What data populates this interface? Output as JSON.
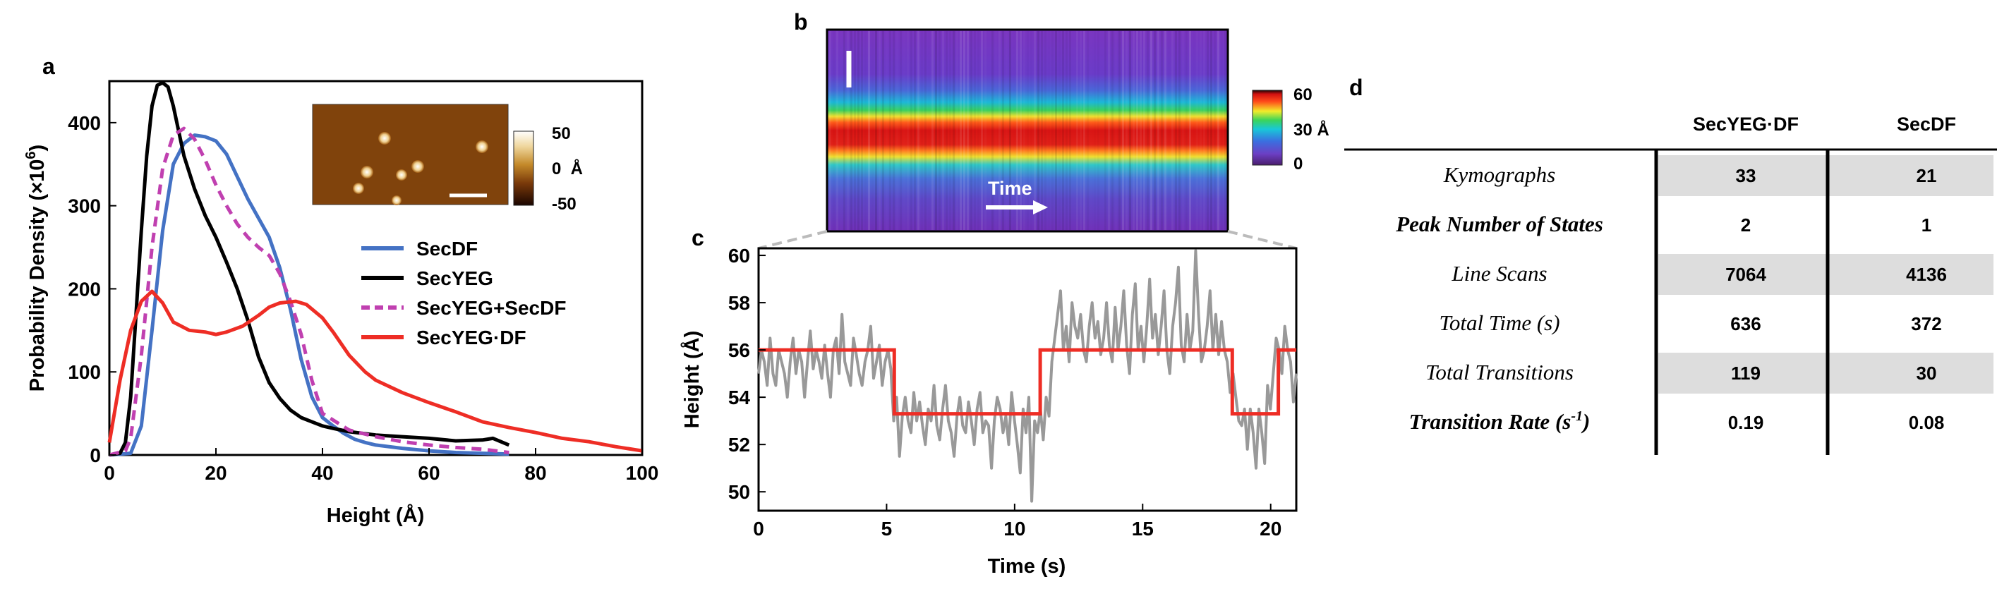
{
  "colors": {
    "secdf": "#4472c4",
    "secyeg": "#000000",
    "mix": "#c040b0",
    "secyegdf": "#ee2d25",
    "trace": "#999999",
    "fit": "#ee2d25",
    "table_shade": "#dddddd"
  },
  "panel_labels": {
    "a": "a",
    "b": "b",
    "c": "c",
    "d": "d"
  },
  "chart_data": [
    {
      "id": "a",
      "type": "line",
      "title": "",
      "xlabel": "Height (Å)",
      "ylabel": "Probability Density (×10⁶)",
      "ylabel_main": "Probability Density (×10",
      "ylabel_exp": "6",
      "ylabel_close": ")",
      "xlim": [
        0,
        100
      ],
      "ylim": [
        0,
        450
      ],
      "xticks": [
        0,
        20,
        40,
        60,
        80,
        100
      ],
      "yticks": [
        0,
        100,
        200,
        300,
        400
      ],
      "legend": {
        "position": "center-right",
        "entries": [
          {
            "label": "SecDF",
            "key": "secdf",
            "style": "solid"
          },
          {
            "label": "SecYEG",
            "key": "secyeg",
            "style": "solid"
          },
          {
            "label": "SecYEG+SecDF",
            "key": "mix",
            "style": "dashed"
          },
          {
            "label": "SecYEG·DF",
            "key": "secyegdf",
            "style": "solid"
          }
        ]
      },
      "inset": {
        "colorbar_ticks": [
          "50",
          "0  Å",
          "-50"
        ]
      },
      "series": [
        {
          "name": "SecDF",
          "key": "secdf",
          "style": "solid",
          "x": [
            0,
            4,
            6,
            8,
            10,
            12,
            14,
            16,
            18,
            20,
            22,
            24,
            26,
            28,
            30,
            32,
            34,
            36,
            38,
            40,
            42,
            44,
            46,
            48,
            50,
            55,
            60,
            65,
            70,
            75
          ],
          "y": [
            0,
            2,
            35,
            150,
            270,
            350,
            375,
            385,
            383,
            378,
            362,
            335,
            308,
            285,
            262,
            225,
            175,
            115,
            70,
            45,
            35,
            26,
            19,
            15,
            12,
            8,
            5,
            3,
            2,
            1
          ]
        },
        {
          "name": "SecYEG",
          "key": "secyeg",
          "style": "solid",
          "x": [
            0,
            2,
            3,
            4,
            5,
            6,
            7,
            8,
            9,
            10,
            11,
            12,
            14,
            16,
            18,
            20,
            22,
            24,
            26,
            28,
            30,
            32,
            34,
            36,
            38,
            40,
            42,
            45,
            50,
            55,
            60,
            65,
            70,
            72,
            75
          ],
          "y": [
            0,
            2,
            15,
            70,
            170,
            270,
            360,
            420,
            445,
            448,
            443,
            420,
            360,
            320,
            288,
            262,
            232,
            200,
            162,
            118,
            87,
            68,
            54,
            45,
            40,
            35,
            32,
            28,
            24,
            22,
            20,
            17,
            18,
            20,
            12
          ]
        },
        {
          "name": "SecYEG+SecDF",
          "key": "mix",
          "style": "dashed",
          "x": [
            0,
            3,
            4,
            6,
            8,
            10,
            12,
            14,
            16,
            18,
            20,
            22,
            24,
            26,
            28,
            30,
            32,
            34,
            36,
            38,
            40,
            45,
            50,
            55,
            60,
            65,
            70,
            75
          ],
          "y": [
            0,
            5,
            20,
            120,
            250,
            345,
            385,
            393,
            380,
            355,
            325,
            300,
            278,
            262,
            250,
            240,
            218,
            185,
            145,
            90,
            50,
            30,
            22,
            16,
            12,
            9,
            7,
            3
          ]
        },
        {
          "name": "SecYEG·DF",
          "key": "secyegdf",
          "style": "solid",
          "x": [
            0,
            2,
            4,
            6,
            8,
            10,
            12,
            15,
            18,
            20,
            22,
            25,
            28,
            30,
            32,
            35,
            37,
            40,
            42,
            45,
            48,
            50,
            55,
            60,
            65,
            70,
            75,
            80,
            85,
            90,
            95,
            100
          ],
          "y": [
            15,
            90,
            150,
            185,
            197,
            183,
            160,
            150,
            148,
            145,
            148,
            155,
            168,
            178,
            183,
            185,
            181,
            165,
            148,
            120,
            100,
            90,
            75,
            63,
            52,
            40,
            33,
            27,
            20,
            16,
            10,
            5
          ]
        }
      ]
    },
    {
      "id": "b",
      "type": "heatmap",
      "title": "",
      "annotation": "Time",
      "colorbar_ticks": [
        "60",
        "30 Å",
        "0"
      ],
      "vlim": [
        0,
        60
      ]
    },
    {
      "id": "c",
      "type": "line",
      "title": "",
      "xlabel": "Time (s)",
      "ylabel": "Height (Å)",
      "xlim": [
        0,
        21
      ],
      "ylim": [
        49.2,
        60.3
      ],
      "xticks": [
        0,
        5,
        10,
        15,
        20
      ],
      "yticks": [
        50,
        52,
        54,
        56,
        58,
        60
      ],
      "series": [
        {
          "name": "trace",
          "key": "trace",
          "style": "solid",
          "y": [
            55,
            56,
            55.5,
            54.5,
            56.5,
            55,
            54.5,
            56,
            55.5,
            55,
            54,
            55.5,
            56.5,
            55,
            56,
            55.5,
            54,
            55.5,
            56.8,
            55.2,
            56,
            55.5,
            54.8,
            56.2,
            55,
            54,
            56,
            56.5,
            55,
            57.5,
            55.5,
            55,
            54.5,
            56.5,
            55.8,
            55,
            54.5,
            55.5,
            56,
            57,
            54.8,
            55.5,
            56.2,
            54.5,
            55.5,
            56,
            55.2,
            53,
            54,
            51.5,
            53.2,
            54,
            53,
            52.5,
            54.2,
            53,
            53.8,
            52.8,
            52,
            53.5,
            53,
            54.5,
            52.8,
            52.2,
            53.5,
            54.5,
            53,
            52.5,
            51.5,
            53.2,
            54,
            52.8,
            52.5,
            53.8,
            53,
            52,
            53.5,
            54.2,
            52.5,
            53,
            52.8,
            51,
            53,
            54,
            53.5,
            52.5,
            53.2,
            52,
            54.2,
            53,
            52,
            50.8,
            53.5,
            52.5,
            54,
            49.6,
            53,
            52.5,
            53.5,
            52.2,
            54,
            53.2,
            55.5,
            56.5,
            57.5,
            58.5,
            56,
            57,
            55.5,
            58,
            57,
            56.5,
            57.5,
            56,
            55.5,
            57,
            58,
            56.5,
            57.2,
            55.8,
            56.5,
            58,
            56.2,
            55.5,
            57.8,
            56,
            57,
            58.5,
            56.2,
            55,
            57.5,
            58.8,
            56,
            57,
            55.5,
            57,
            59,
            56.5,
            57.5,
            55.8,
            57,
            58.5,
            56,
            55,
            57,
            58,
            59.5,
            56.2,
            55.5,
            57.5,
            56,
            56.8,
            60.2,
            57.5,
            55.5,
            56,
            57,
            58.5,
            56,
            57.5,
            55.8,
            57.2,
            56,
            55.5,
            54.2,
            55,
            54,
            53,
            52.8,
            53.5,
            51.8,
            53.5,
            52.5,
            51,
            53.5,
            52.5,
            51.2,
            54.5,
            53.5,
            55,
            56.5,
            56,
            55,
            57,
            56,
            55.5,
            53.8,
            55
          ]
        },
        {
          "name": "fit",
          "key": "fit",
          "style": "step",
          "x": [
            0,
            5.3,
            5.3,
            11.0,
            11.0,
            18.5,
            18.5,
            20.3,
            20.3,
            21
          ],
          "y": [
            56,
            56,
            53.3,
            53.3,
            56,
            56,
            53.3,
            53.3,
            56,
            56
          ]
        }
      ]
    },
    {
      "id": "d",
      "type": "table",
      "title": "",
      "columns": [
        "SecYEG·DF",
        "SecDF"
      ],
      "rows": [
        {
          "label": "Kymographs",
          "label_bold": false,
          "label_sup": "",
          "values": [
            "33",
            "21"
          ],
          "shaded": true
        },
        {
          "label": "Peak Number of States",
          "label_bold": true,
          "label_sup": "",
          "values": [
            "2",
            "1"
          ],
          "shaded": false
        },
        {
          "label": "Line Scans",
          "label_bold": false,
          "label_sup": "",
          "values": [
            "7064",
            "4136"
          ],
          "shaded": true
        },
        {
          "label": "Total Time (s)",
          "label_bold": false,
          "label_sup": "",
          "values": [
            "636",
            "372"
          ],
          "shaded": false
        },
        {
          "label": "Total Transitions",
          "label_bold": false,
          "label_sup": "",
          "values": [
            "119",
            "30"
          ],
          "shaded": true
        },
        {
          "label": "Transition Rate (s",
          "label_bold": true,
          "label_sup": "-1",
          "label_close": ")",
          "values": [
            "0.19",
            "0.08"
          ],
          "shaded": false
        }
      ]
    }
  ]
}
